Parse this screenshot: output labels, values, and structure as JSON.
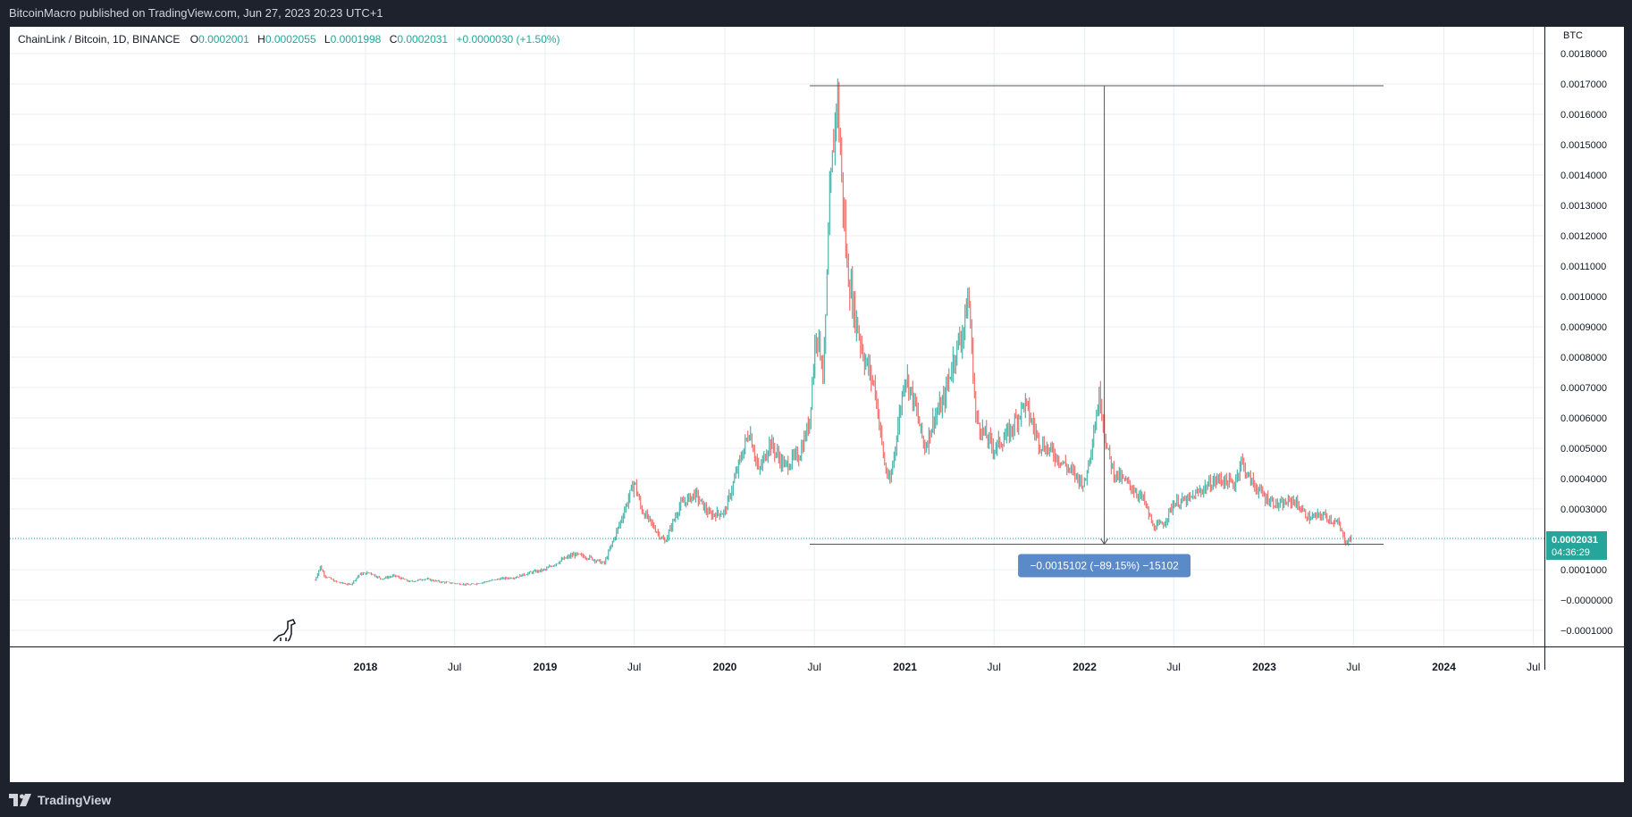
{
  "header": {
    "published": "BitcoinMacro published on TradingView.com, Jun 27, 2023 20:23 UTC+1"
  },
  "legend": {
    "symbol": "ChainLink / Bitcoin, 1D, BINANCE",
    "o_label": "O",
    "o_value": "0.0002001",
    "h_label": "H",
    "h_value": "0.0002055",
    "l_label": "L",
    "l_value": "0.0001998",
    "c_label": "C",
    "c_value": "0.0002031",
    "change": "+0.0000030 (+1.50%)"
  },
  "price_axis": {
    "unit": "BTC",
    "ticks": [
      "0.0018000",
      "0.0017000",
      "0.0016000",
      "0.0015000",
      "0.0014000",
      "0.0013000",
      "0.0012000",
      "0.0011000",
      "0.0010000",
      "0.0009000",
      "0.0008000",
      "0.0007000",
      "0.0006000",
      "0.0005000",
      "0.0004000",
      "0.0003000",
      "0.0002000",
      "0.0001000",
      "−0.0000000",
      "−0.0001000"
    ],
    "current_price": "0.0002031",
    "countdown": "04:36:29"
  },
  "time_axis": {
    "ticks": [
      {
        "label": "2018",
        "bold": true
      },
      {
        "label": "Jul",
        "bold": false
      },
      {
        "label": "2019",
        "bold": true
      },
      {
        "label": "Jul",
        "bold": false
      },
      {
        "label": "2020",
        "bold": true
      },
      {
        "label": "Jul",
        "bold": false
      },
      {
        "label": "2021",
        "bold": true
      },
      {
        "label": "Jul",
        "bold": false
      },
      {
        "label": "2022",
        "bold": true
      },
      {
        "label": "Jul",
        "bold": false
      },
      {
        "label": "2023",
        "bold": true
      },
      {
        "label": "Jul",
        "bold": false
      },
      {
        "label": "2024",
        "bold": true
      },
      {
        "label": "Jul",
        "bold": false
      }
    ]
  },
  "measure": {
    "label": "−0.0015102 (−89.15%) −15102"
  },
  "footer": {
    "brand": "TradingView"
  },
  "colors": {
    "up": "#26a69a",
    "down": "#ef5350",
    "grid": "#e8edf3",
    "accent": "#26a69a",
    "measure_bg": "#5b8ac9",
    "axis_text": "#131722"
  },
  "chart_data": {
    "type": "line",
    "title": "ChainLink / Bitcoin, 1D, BINANCE",
    "ylabel": "BTC",
    "ylim": [
      -0.00015,
      0.00195
    ],
    "x_units": "date",
    "series": [
      {
        "values": [
          [
            "2017-09-20",
            6.5e-05
          ],
          [
            "2017-10-01",
            0.00011
          ],
          [
            "2017-10-10",
            8e-05
          ],
          [
            "2017-11-01",
            6e-05
          ],
          [
            "2017-12-01",
            5e-05
          ],
          [
            "2017-12-20",
            8.5e-05
          ],
          [
            "2018-01-10",
            9e-05
          ],
          [
            "2018-02-01",
            7e-05
          ],
          [
            "2018-03-01",
            8e-05
          ],
          [
            "2018-04-01",
            6e-05
          ],
          [
            "2018-05-01",
            7e-05
          ],
          [
            "2018-06-01",
            6e-05
          ],
          [
            "2018-07-01",
            5.5e-05
          ],
          [
            "2018-08-01",
            5e-05
          ],
          [
            "2018-09-01",
            6e-05
          ],
          [
            "2018-10-01",
            7e-05
          ],
          [
            "2018-11-01",
            7.5e-05
          ],
          [
            "2018-12-01",
            9e-05
          ],
          [
            "2019-01-01",
            0.0001
          ],
          [
            "2019-02-01",
            0.00013
          ],
          [
            "2019-03-01",
            0.00015
          ],
          [
            "2019-04-01",
            0.00014
          ],
          [
            "2019-05-01",
            0.00012
          ],
          [
            "2019-06-01",
            0.00025
          ],
          [
            "2019-07-01",
            0.00039
          ],
          [
            "2019-07-15",
            0.0003
          ],
          [
            "2019-08-01",
            0.00026
          ],
          [
            "2019-09-01",
            0.00019
          ],
          [
            "2019-10-01",
            0.00031
          ],
          [
            "2019-11-01",
            0.00035
          ],
          [
            "2019-12-01",
            0.00028
          ],
          [
            "2020-01-01",
            0.00029
          ],
          [
            "2020-02-01",
            0.00046
          ],
          [
            "2020-02-20",
            0.00056
          ],
          [
            "2020-03-10",
            0.00042
          ],
          [
            "2020-04-01",
            0.00052
          ],
          [
            "2020-05-01",
            0.00044
          ],
          [
            "2020-06-01",
            0.00048
          ],
          [
            "2020-06-20",
            0.00058
          ],
          [
            "2020-07-05",
            0.0009
          ],
          [
            "2020-07-20",
            0.00075
          ],
          [
            "2020-08-01",
            0.0013
          ],
          [
            "2020-08-16",
            0.00169
          ],
          [
            "2020-08-25",
            0.0014
          ],
          [
            "2020-09-05",
            0.0011
          ],
          [
            "2020-09-20",
            0.00095
          ],
          [
            "2020-10-10",
            0.0008
          ],
          [
            "2020-11-01",
            0.0007
          ],
          [
            "2020-11-20",
            0.00045
          ],
          [
            "2020-12-01",
            0.00038
          ],
          [
            "2020-12-20",
            0.0006
          ],
          [
            "2021-01-01",
            0.00075
          ],
          [
            "2021-01-20",
            0.00065
          ],
          [
            "2021-02-10",
            0.0005
          ],
          [
            "2021-03-01",
            0.0006
          ],
          [
            "2021-03-20",
            0.00065
          ],
          [
            "2021-04-10",
            0.0008
          ],
          [
            "2021-05-01",
            0.0009
          ],
          [
            "2021-05-10",
            0.00101
          ],
          [
            "2021-05-25",
            0.0006
          ],
          [
            "2021-06-10",
            0.00055
          ],
          [
            "2021-07-01",
            0.0005
          ],
          [
            "2021-08-01",
            0.00055
          ],
          [
            "2021-09-01",
            0.00065
          ],
          [
            "2021-10-01",
            0.00052
          ],
          [
            "2021-11-01",
            0.00048
          ],
          [
            "2021-12-01",
            0.00043
          ],
          [
            "2022-01-01",
            0.00038
          ],
          [
            "2022-02-01",
            0.00068
          ],
          [
            "2022-02-15",
            0.0005
          ],
          [
            "2022-03-01",
            0.00042
          ],
          [
            "2022-04-01",
            0.00038
          ],
          [
            "2022-05-01",
            0.00033
          ],
          [
            "2022-05-20",
            0.00024
          ],
          [
            "2022-06-10",
            0.00025
          ],
          [
            "2022-07-01",
            0.00032
          ],
          [
            "2022-08-01",
            0.00033
          ],
          [
            "2022-09-01",
            0.00037
          ],
          [
            "2022-10-01",
            0.0004
          ],
          [
            "2022-11-01",
            0.00038
          ],
          [
            "2022-11-15",
            0.00046
          ],
          [
            "2022-12-01",
            0.0004
          ],
          [
            "2023-01-01",
            0.00034
          ],
          [
            "2023-02-01",
            0.00031
          ],
          [
            "2023-03-01",
            0.00033
          ],
          [
            "2023-04-01",
            0.00027
          ],
          [
            "2023-05-01",
            0.00028
          ],
          [
            "2023-06-01",
            0.00025
          ],
          [
            "2023-06-15",
            0.00019
          ],
          [
            "2023-06-27",
            0.0002031
          ]
        ]
      }
    ],
    "measure": {
      "from_date": "2020-08-16",
      "from": 0.0016942,
      "to": 0.000184,
      "change": -0.0015102,
      "change_pct": -89.15
    }
  }
}
